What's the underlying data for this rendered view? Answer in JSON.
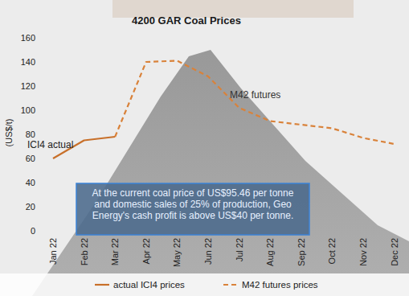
{
  "chart_data": {
    "type": "line",
    "title": "4200 GAR Coal Prices",
    "y_label": "(US$/t)",
    "categories": [
      "Jan 22",
      "Feb 22",
      "Mar 22",
      "Apr 22",
      "May 22",
      "Jun 22",
      "Jul 22",
      "Aug 22",
      "Sep 22",
      "Oct 22",
      "Nov 22",
      "Dec 22"
    ],
    "series": [
      {
        "name": "actual ICI4 prices",
        "color": "#c8702a",
        "line_style": "solid",
        "values": [
          60,
          75,
          78,
          null,
          null,
          null,
          null,
          null,
          null,
          null,
          null,
          null
        ]
      },
      {
        "name": "M42 futures prices",
        "color": "#d9823a",
        "line_style": "dashed",
        "values": [
          null,
          null,
          78,
          140,
          141,
          128,
          102,
          91,
          88,
          85,
          77,
          72
        ]
      }
    ],
    "annotations": [
      "ICI4 actual",
      "M42 futures",
      "At the current coal price of US$95.46 per tonne and domestic sales of 25% of production, Geo Energy's cash profit is above US$40 per tonne."
    ],
    "ylim": [
      0,
      160
    ],
    "yticks": [
      0,
      20,
      40,
      60,
      80,
      100,
      120,
      140,
      160
    ],
    "grid": false,
    "legend": "bottom"
  }
}
